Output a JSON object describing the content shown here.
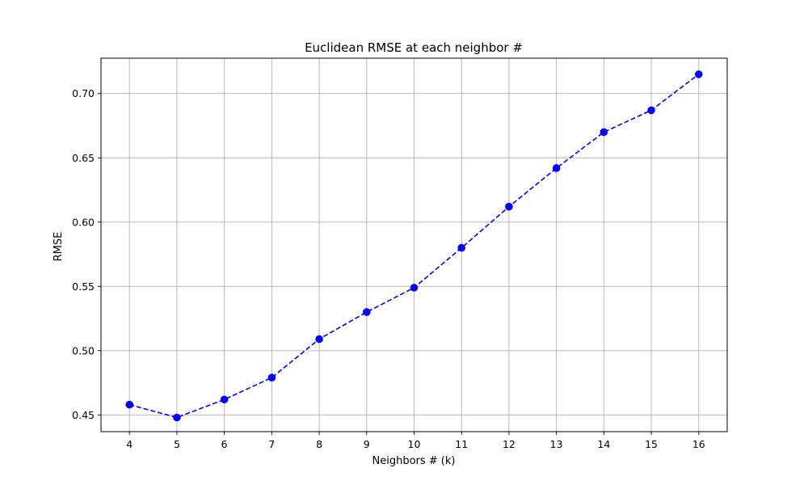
{
  "chart_data": {
    "type": "line",
    "title": "Euclidean RMSE at each neighbor #",
    "xlabel": "Neighbors # (k)",
    "ylabel": "RMSE",
    "grid": true,
    "xlim": [
      3.4,
      16.6
    ],
    "ylim": [
      0.437,
      0.7275
    ],
    "xticks": [
      4,
      5,
      6,
      7,
      8,
      9,
      10,
      11,
      12,
      13,
      14,
      15,
      16
    ],
    "yticks": [
      0.45,
      0.5,
      0.55,
      0.6,
      0.65,
      0.7
    ],
    "ytick_labels": [
      "0.45",
      "0.50",
      "0.55",
      "0.60",
      "0.65",
      "0.70"
    ],
    "series": [
      {
        "name": "Euclidean RMSE",
        "color": "#0000ff",
        "line_style": "dashed",
        "marker": "circle",
        "x": [
          4,
          5,
          6,
          7,
          8,
          9,
          10,
          11,
          12,
          13,
          14,
          15,
          16
        ],
        "values": [
          0.458,
          0.448,
          0.462,
          0.479,
          0.509,
          0.53,
          0.549,
          0.58,
          0.612,
          0.642,
          0.67,
          0.687,
          0.715
        ]
      }
    ]
  }
}
